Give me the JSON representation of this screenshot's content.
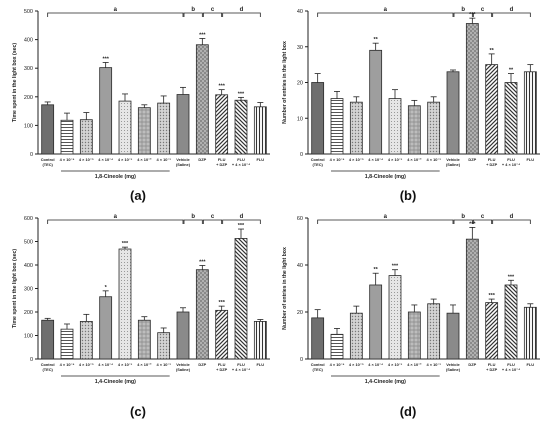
{
  "figure": {
    "panel_labels": [
      "(a)",
      "(b)",
      "(c)",
      "(d)"
    ]
  },
  "chart_data": [
    {
      "type": "bar",
      "panel": "(a)",
      "ylabel": "Time spent in the light box (sec)",
      "xlabel": "1,8-Cineole (mg)",
      "ylim": [
        0,
        500
      ],
      "yticks": [
        0,
        100,
        200,
        300,
        400,
        500
      ],
      "categories": [
        "Control (TEC)",
        "4 × 10⁻⁶",
        "4 × 10⁻⁵",
        "4 × 10⁻⁴",
        "4 × 10⁻³",
        "4 × 10⁻²",
        "4 × 10⁻¹",
        "Vehicle (Saline)",
        "DZP",
        "FLU + DZP",
        "FLU + 4 × 10⁻⁴",
        "FLU"
      ],
      "values": [
        172,
        118,
        120,
        302,
        185,
        162,
        178,
        208,
        382,
        207,
        188,
        165
      ],
      "errors": [
        10,
        25,
        25,
        18,
        25,
        10,
        25,
        25,
        22,
        18,
        10,
        15
      ],
      "stars": [
        "",
        "",
        "",
        "***",
        "",
        "",
        "",
        "",
        "***",
        "***",
        "***",
        ""
      ],
      "brackets": [
        "a",
        "b",
        "c",
        "d"
      ]
    },
    {
      "type": "bar",
      "panel": "(b)",
      "ylabel": "Number of entries in the light box",
      "xlabel": "1,8-Cineole (mg)",
      "ylim": [
        0,
        40
      ],
      "yticks": [
        0,
        10,
        20,
        30,
        40
      ],
      "categories": [
        "Control (TEC)",
        "4 × 10⁻⁶",
        "4 × 10⁻⁵",
        "4 × 10⁻⁴",
        "4 × 10⁻³",
        "4 × 10⁻²",
        "4 × 10⁻¹",
        "Vehicle (Saline)",
        "DZP",
        "FLU + DZP",
        "FLU + 4 × 10⁻⁴",
        "FLU"
      ],
      "values": [
        20,
        15.5,
        14.5,
        29,
        15.5,
        13.5,
        14.5,
        23,
        36.5,
        25,
        20,
        23
      ],
      "errors": [
        2.5,
        2,
        1.5,
        2,
        2.5,
        1.5,
        1.5,
        0.5,
        1.5,
        3,
        2.5,
        2
      ],
      "stars": [
        "",
        "",
        "",
        "**",
        "",
        "",
        "",
        "",
        "***",
        "**",
        "**",
        ""
      ],
      "brackets": [
        "a",
        "b",
        "c",
        "d"
      ]
    },
    {
      "type": "bar",
      "panel": "(c)",
      "ylabel": "Time spent in the light box (sec)",
      "xlabel": "1,4-Cineole (mg)",
      "ylim": [
        0,
        600
      ],
      "yticks": [
        0,
        100,
        200,
        300,
        400,
        500,
        600
      ],
      "categories": [
        "Control (TEC)",
        "4 × 10⁻⁶",
        "4 × 10⁻⁵",
        "4 × 10⁻⁴",
        "4 × 10⁻³",
        "4 × 10⁻²",
        "4 × 10⁻¹",
        "Vehicle (Saline)",
        "DZP",
        "FLU + DZP",
        "FLU + 4 × 10⁻⁴",
        "FLU"
      ],
      "values": [
        165,
        127,
        160,
        265,
        468,
        165,
        112,
        200,
        380,
        207,
        513,
        160
      ],
      "errors": [
        8,
        22,
        30,
        25,
        8,
        15,
        20,
        18,
        18,
        18,
        40,
        8
      ],
      "stars": [
        "",
        "",
        "",
        "*",
        "***",
        "",
        "",
        "",
        "***",
        "***",
        "***",
        ""
      ],
      "brackets": [
        "a",
        "b",
        "c",
        "d"
      ]
    },
    {
      "type": "bar",
      "panel": "(d)",
      "ylabel": "Number of entries in the light box",
      "xlabel": "1,4-Cineole (mg)",
      "ylim": [
        0,
        60
      ],
      "yticks": [
        0,
        20,
        40,
        60
      ],
      "categories": [
        "Control (TEC)",
        "4 × 10⁻⁶",
        "4 × 10⁻⁵",
        "4 × 10⁻⁴",
        "4 × 10⁻³",
        "4 × 10⁻²",
        "4 × 10⁻¹",
        "Vehicle (Saline)",
        "DZP",
        "FLU + DZP",
        "FLU + 4 × 10⁻⁴",
        "FLU"
      ],
      "values": [
        17.5,
        10.5,
        19.5,
        31.5,
        35.5,
        20,
        23.5,
        19.5,
        51,
        24,
        31.5,
        22
      ],
      "errors": [
        3.5,
        2.5,
        3,
        5,
        2.5,
        3,
        2,
        3.5,
        5,
        1.5,
        2,
        1.5
      ],
      "stars": [
        "",
        "",
        "",
        "**",
        "***",
        "",
        "",
        "",
        "***",
        "***",
        "***",
        ""
      ],
      "brackets": [
        "a",
        "b",
        "c",
        "d"
      ]
    }
  ],
  "style": {
    "bar_stroke": "#2b2b2b",
    "control_fill": "#6f6f6f",
    "vehicle_fill": "#8a8a8a",
    "dzp_fill": "#a7a7a7",
    "light_fill": "#c9c9c9",
    "mid_fill": "#9e9e9e"
  }
}
